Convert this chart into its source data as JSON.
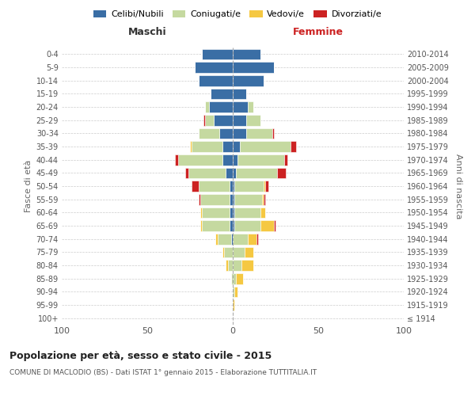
{
  "age_groups": [
    "100+",
    "95-99",
    "90-94",
    "85-89",
    "80-84",
    "75-79",
    "70-74",
    "65-69",
    "60-64",
    "55-59",
    "50-54",
    "45-49",
    "40-44",
    "35-39",
    "30-34",
    "25-29",
    "20-24",
    "15-19",
    "10-14",
    "5-9",
    "0-4"
  ],
  "birth_years": [
    "≤ 1914",
    "1915-1919",
    "1920-1924",
    "1925-1929",
    "1930-1934",
    "1935-1939",
    "1940-1944",
    "1945-1949",
    "1950-1954",
    "1955-1959",
    "1960-1964",
    "1965-1969",
    "1970-1974",
    "1975-1979",
    "1980-1984",
    "1985-1989",
    "1990-1994",
    "1995-1999",
    "2000-2004",
    "2005-2009",
    "2010-2014"
  ],
  "male": {
    "celibi": [
      0,
      0,
      0,
      0,
      0,
      0,
      1,
      2,
      2,
      2,
      2,
      4,
      6,
      6,
      8,
      11,
      14,
      13,
      20,
      22,
      18
    ],
    "coniugati": [
      0,
      0,
      0,
      1,
      3,
      5,
      8,
      16,
      16,
      17,
      18,
      22,
      26,
      18,
      12,
      5,
      2,
      0,
      0,
      0,
      0
    ],
    "vedovi": [
      0,
      0,
      0,
      0,
      1,
      1,
      1,
      1,
      1,
      0,
      0,
      0,
      0,
      1,
      0,
      0,
      0,
      0,
      0,
      0,
      0
    ],
    "divorziati": [
      0,
      0,
      0,
      0,
      0,
      0,
      0,
      0,
      0,
      1,
      4,
      2,
      2,
      0,
      0,
      1,
      0,
      0,
      0,
      0,
      0
    ]
  },
  "female": {
    "nubili": [
      0,
      0,
      0,
      0,
      0,
      0,
      0,
      1,
      1,
      1,
      1,
      2,
      3,
      4,
      8,
      8,
      9,
      8,
      18,
      24,
      16
    ],
    "coniugate": [
      0,
      0,
      1,
      2,
      5,
      7,
      9,
      15,
      15,
      16,
      17,
      24,
      27,
      30,
      15,
      8,
      3,
      0,
      0,
      0,
      0
    ],
    "vedove": [
      0,
      1,
      2,
      4,
      7,
      5,
      5,
      8,
      3,
      1,
      1,
      0,
      0,
      0,
      0,
      0,
      0,
      0,
      0,
      0,
      0
    ],
    "divorziate": [
      0,
      0,
      0,
      0,
      0,
      0,
      1,
      1,
      0,
      1,
      2,
      5,
      2,
      3,
      1,
      0,
      0,
      0,
      0,
      0,
      0
    ]
  },
  "color_celibi": "#3A6EA5",
  "color_coniugati": "#C5D9A0",
  "color_vedovi": "#F5C842",
  "color_divorziati": "#CC2222",
  "xlim": 100,
  "xlabel_left": "Maschi",
  "xlabel_right": "Femmine",
  "ylabel_left": "Fasce di età",
  "ylabel_right": "Anni di nascita",
  "title": "Popolazione per età, sesso e stato civile - 2015",
  "subtitle": "COMUNE DI MACLODIO (BS) - Dati ISTAT 1° gennaio 2015 - Elaborazione TUTTITALIA.IT",
  "legend_labels": [
    "Celibi/Nubili",
    "Coniugati/e",
    "Vedovi/e",
    "Divorziati/e"
  ],
  "bg_color": "#FFFFFF",
  "grid_color": "#CCCCCC"
}
